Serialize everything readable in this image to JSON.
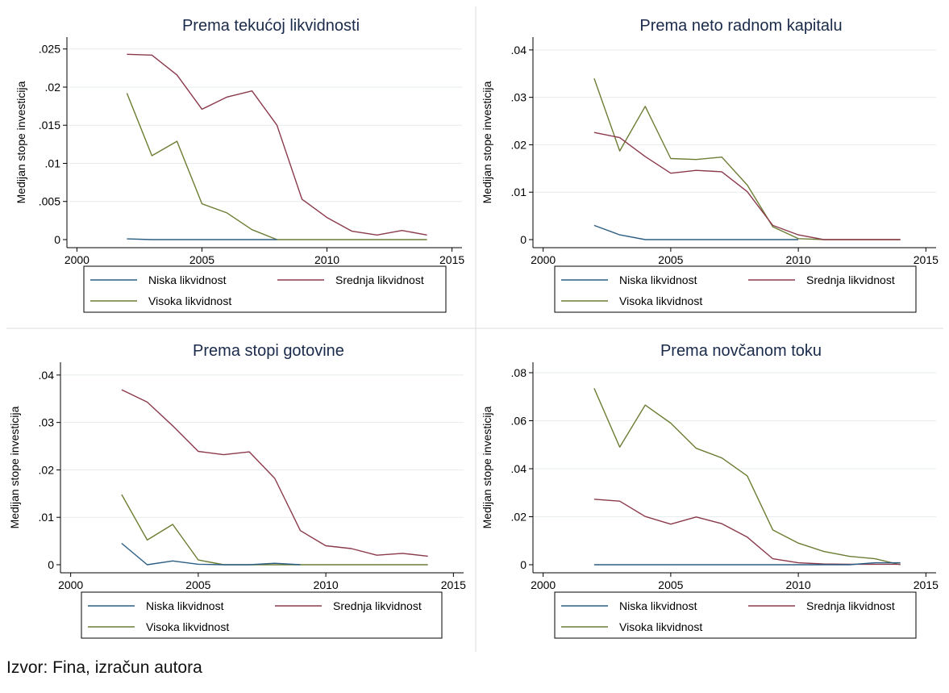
{
  "source_note": "Izvor: Fina, izračun autora",
  "colors": {
    "niska": "#2b5e84",
    "srednja": "#8b3a4c",
    "visoka": "#6b7d33",
    "title": "#1a2a4a",
    "axis": "#000000",
    "grid": "#e7ecee",
    "divider": "#dcdcdc"
  },
  "chart_data": [
    {
      "type": "line",
      "title": "Prema tekućoj likvidnosti",
      "ylabel": "Medijan stope investicija",
      "xlabel": "",
      "xlim": [
        1999.6,
        2015.4
      ],
      "ylim": [
        0,
        0.0255
      ],
      "xticks": [
        2000,
        2005,
        2010,
        2015
      ],
      "xtick_labels": [
        "2000",
        "2005",
        "2010",
        "2015"
      ],
      "yticks": [
        0,
        0.005,
        0.01,
        0.015,
        0.02,
        0.025
      ],
      "ytick_labels": [
        "0",
        ".005",
        ".01",
        ".015",
        ".02",
        ".025"
      ],
      "grid": true,
      "legend_position": "bottom",
      "x": [
        2002,
        2003,
        2004,
        2005,
        2006,
        2007,
        2008,
        2009,
        2010,
        2011,
        2012,
        2013,
        2014
      ],
      "series": [
        {
          "name": "Niska likvidnost",
          "color": "#2b5e84",
          "values": [
            0.0001,
            0,
            0,
            0,
            0,
            0,
            0,
            null,
            null,
            null,
            null,
            null,
            null
          ]
        },
        {
          "name": "Srednja likvidnost",
          "color": "#8b3a4c",
          "values": [
            0.0243,
            0.0242,
            0.0216,
            0.0171,
            0.0187,
            0.0195,
            0.015,
            0.0053,
            0.0029,
            0.0011,
            0.0006,
            0.0012,
            0.0006
          ]
        },
        {
          "name": "Visoka likvidnost",
          "color": "#6b7d33",
          "values": [
            0.0192,
            0.011,
            0.0129,
            0.0047,
            0.0035,
            0.0013,
            0,
            0,
            0,
            0,
            0,
            0,
            0
          ]
        }
      ]
    },
    {
      "type": "line",
      "title": "Prema neto radnom kapitalu",
      "ylabel": "Medijan stope investicija",
      "xlabel": "",
      "xlim": [
        1999.6,
        2015.4
      ],
      "ylim": [
        0,
        0.041
      ],
      "xticks": [
        2000,
        2005,
        2010,
        2015
      ],
      "xtick_labels": [
        "2000",
        "2005",
        "2010",
        "2015"
      ],
      "yticks": [
        0,
        0.01,
        0.02,
        0.03,
        0.04
      ],
      "ytick_labels": [
        "0",
        ".01",
        ".02",
        ".03",
        ".04"
      ],
      "grid": true,
      "legend_position": "bottom",
      "x": [
        2002,
        2003,
        2004,
        2005,
        2006,
        2007,
        2008,
        2009,
        2010,
        2011,
        2012,
        2013,
        2014
      ],
      "series": [
        {
          "name": "Niska likvidnost",
          "color": "#2b5e84",
          "values": [
            0.003,
            0.001,
            0,
            0,
            0,
            0,
            0,
            0,
            0,
            null,
            null,
            null,
            null
          ]
        },
        {
          "name": "Srednja likvidnost",
          "color": "#8b3a4c",
          "values": [
            0.0226,
            0.0215,
            0.0175,
            0.014,
            0.0146,
            0.0143,
            0.0101,
            0.003,
            0.001,
            0,
            0,
            0,
            0
          ]
        },
        {
          "name": "Visoka likvidnost",
          "color": "#6b7d33",
          "values": [
            0.034,
            0.0187,
            0.0281,
            0.0171,
            0.0169,
            0.0174,
            0.0115,
            0.0027,
            0.0002,
            0,
            0,
            0,
            0
          ]
        }
      ]
    },
    {
      "type": "line",
      "title": "Prema stopi gotovine",
      "ylabel": "Medijan stope investicija",
      "xlabel": "",
      "xlim": [
        1999.6,
        2015.4
      ],
      "ylim": [
        0,
        0.041
      ],
      "xticks": [
        2000,
        2005,
        2010,
        2015
      ],
      "xtick_labels": [
        "2000",
        "2005",
        "2010",
        "2015"
      ],
      "yticks": [
        0,
        0.01,
        0.02,
        0.03,
        0.04
      ],
      "ytick_labels": [
        "0",
        ".01",
        ".02",
        ".03",
        ".04"
      ],
      "grid": true,
      "legend_position": "bottom",
      "x": [
        2002,
        2003,
        2004,
        2005,
        2006,
        2007,
        2008,
        2009,
        2010,
        2011,
        2012,
        2013,
        2014
      ],
      "series": [
        {
          "name": "Niska likvidnost",
          "color": "#2b5e84",
          "values": [
            0.0045,
            0,
            0.0008,
            0.0001,
            0,
            0,
            0.0003,
            0,
            null,
            null,
            null,
            null,
            null
          ]
        },
        {
          "name": "Srednja likvidnost",
          "color": "#8b3a4c",
          "values": [
            0.0369,
            0.0343,
            0.0293,
            0.0239,
            0.0232,
            0.0238,
            0.0182,
            0.0072,
            0.004,
            0.0034,
            0.002,
            0.0024,
            0.0018
          ]
        },
        {
          "name": "Visoka likvidnost",
          "color": "#6b7d33",
          "values": [
            0.0148,
            0.0052,
            0.0085,
            0.001,
            0,
            0,
            0,
            0,
            0,
            0,
            0,
            0,
            0
          ]
        }
      ]
    },
    {
      "type": "line",
      "title": "Prema novčanom toku",
      "ylabel": "Medijan stope investicija",
      "xlabel": "",
      "xlim": [
        1999.6,
        2015.4
      ],
      "ylim": [
        0,
        0.081
      ],
      "xticks": [
        2000,
        2005,
        2010,
        2015
      ],
      "xtick_labels": [
        "2000",
        "2005",
        "2010",
        "2015"
      ],
      "yticks": [
        0,
        0.02,
        0.04,
        0.06,
        0.08
      ],
      "ytick_labels": [
        "0",
        ".02",
        ".04",
        ".06",
        ".08"
      ],
      "grid": true,
      "legend_position": "bottom",
      "x": [
        2002,
        2003,
        2004,
        2005,
        2006,
        2007,
        2008,
        2009,
        2010,
        2011,
        2012,
        2013,
        2014
      ],
      "series": [
        {
          "name": "Niska likvidnost",
          "color": "#2b5e84",
          "values": [
            0,
            0,
            0,
            0,
            0,
            0,
            0,
            0,
            0,
            0,
            0,
            0.0008,
            0.0008
          ]
        },
        {
          "name": "Srednja likvidnost",
          "color": "#8b3a4c",
          "values": [
            0.0273,
            0.0265,
            0.0201,
            0.0169,
            0.0199,
            0.0171,
            0.0115,
            0.0025,
            0.0008,
            0.0003,
            0.0002,
            0.0002,
            0.0002
          ]
        },
        {
          "name": "Visoka likvidnost",
          "color": "#6b7d33",
          "values": [
            0.0735,
            0.049,
            0.0665,
            0.059,
            0.0485,
            0.0445,
            0.037,
            0.0145,
            0.009,
            0.0055,
            0.0035,
            0.0025,
            0
          ]
        }
      ]
    }
  ]
}
